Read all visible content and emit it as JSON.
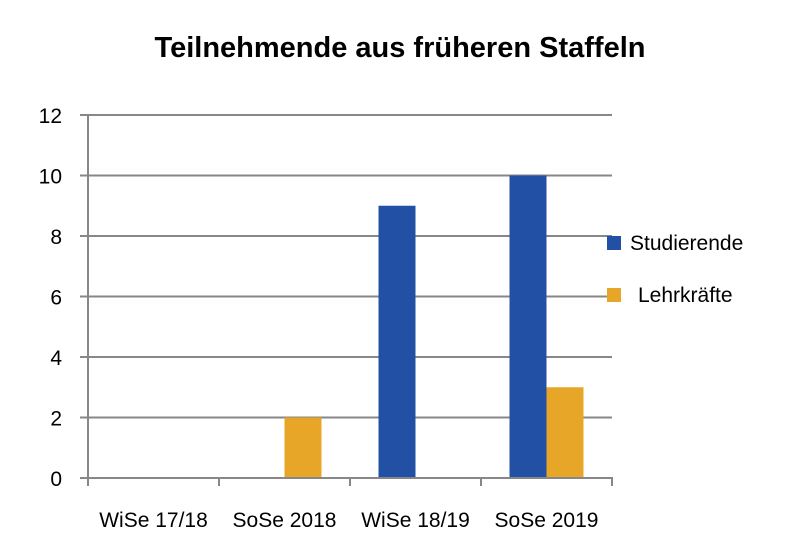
{
  "chart_data": {
    "type": "bar",
    "title": "Teilnehmende aus früheren Staffeln",
    "xlabel": "",
    "ylabel": "",
    "categories": [
      "WiSe 17/18",
      "SoSe 2018",
      "WiSe 18/19",
      "SoSe 2019"
    ],
    "series": [
      {
        "name": "Studierende",
        "color": "#2150A5",
        "values": [
          0,
          0,
          9,
          10
        ]
      },
      {
        "name": "Lehrkräfte",
        "color": "#E8A628",
        "values": [
          0,
          2,
          0,
          3
        ]
      }
    ],
    "ylim": [
      0,
      12
    ],
    "yticks": [
      "0",
      "2",
      "4",
      "6",
      "8",
      "10",
      "12"
    ],
    "grid": true,
    "legend_position": "right"
  }
}
